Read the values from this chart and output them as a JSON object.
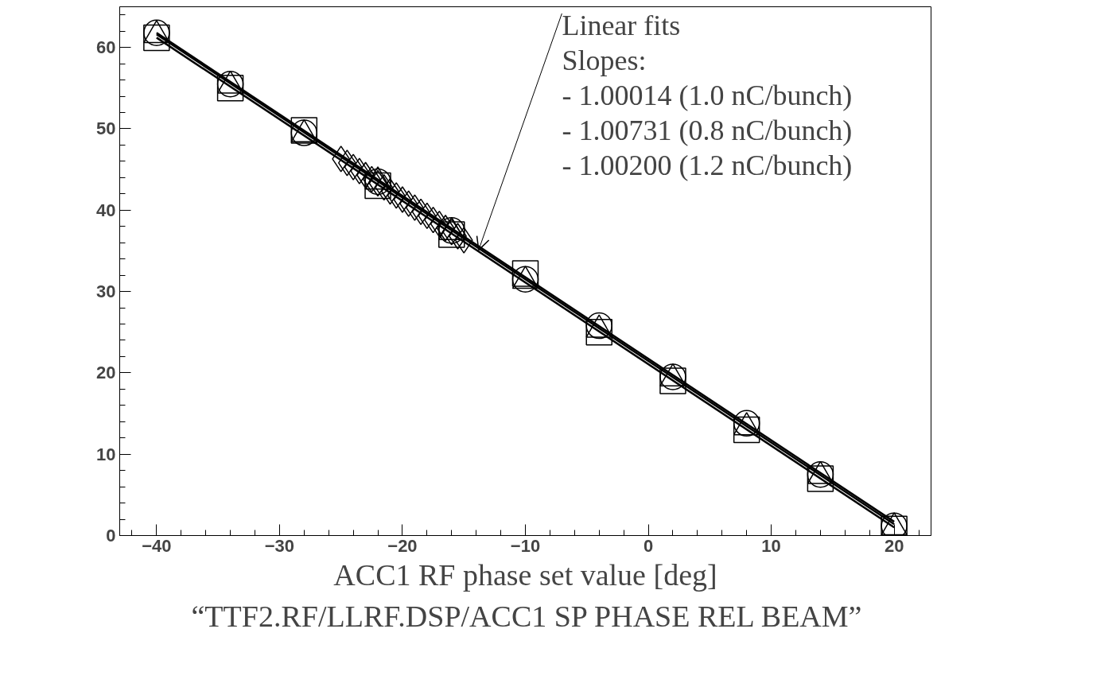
{
  "chart_data": {
    "type": "scatter",
    "xlabel": "ACC1 RF phase set value [deg]",
    "xlim": [
      -43,
      23
    ],
    "ylim": [
      0,
      65
    ],
    "xticks": [
      -40,
      -30,
      -20,
      -10,
      0,
      10,
      20
    ],
    "yticks": [
      0,
      10,
      20,
      30,
      40,
      50,
      60
    ],
    "grid": false,
    "series": [
      {
        "marker": "circle",
        "color": "#000000",
        "x": [
          -40,
          -34,
          -28,
          -22,
          -16,
          -10,
          -4,
          2,
          8,
          14,
          20
        ],
        "values": [
          61.8,
          55.5,
          49.5,
          43.5,
          37.5,
          31.5,
          25.8,
          19.5,
          13.8,
          7.5,
          1.2
        ]
      },
      {
        "marker": "square",
        "color": "#000000",
        "x": [
          -40,
          -34,
          -28,
          -22,
          -16,
          -10,
          -4,
          2,
          8,
          14,
          20
        ],
        "values": [
          61.2,
          55.0,
          49.8,
          43.0,
          37.0,
          32.2,
          25.0,
          19.0,
          13.0,
          7.0,
          0.8
        ]
      },
      {
        "marker": "triangle",
        "color": "#000000",
        "x": [
          -40,
          -34,
          -28,
          -22,
          -16,
          -10,
          -4,
          2,
          8,
          14,
          20
        ],
        "values": [
          61.5,
          55.3,
          49.3,
          43.5,
          37.3,
          31.3,
          25.3,
          19.3,
          13.3,
          7.3,
          1.0
        ]
      },
      {
        "marker": "diamond",
        "color": "#000000",
        "x": [
          -25,
          -24.5,
          -24,
          -23.5,
          -23,
          -22.5,
          -22,
          -21.5,
          -21,
          -20.5,
          -20,
          -19.5,
          -19,
          -18.5,
          -18,
          -17.5,
          -17,
          -16.5,
          -16,
          -15.5,
          -15
        ],
        "values": [
          46.3,
          45.8,
          45.3,
          44.8,
          44.3,
          43.8,
          43.3,
          42.8,
          42.3,
          41.8,
          41.3,
          40.8,
          40.3,
          39.8,
          39.3,
          38.8,
          38.3,
          37.8,
          37.3,
          36.8,
          36.3
        ]
      },
      {
        "type": "line",
        "color": "#000000",
        "x": [
          -40,
          20
        ],
        "values": [
          61.6,
          1.4
        ]
      },
      {
        "type": "line",
        "color": "#000000",
        "x": [
          -40,
          20
        ],
        "values": [
          61.2,
          1.0
        ]
      },
      {
        "type": "line",
        "color": "#000000",
        "x": [
          -40,
          20
        ],
        "values": [
          61.8,
          1.7
        ]
      }
    ],
    "annotations": [
      {
        "text": "Linear fits\nSlopes:\n- 1.00014 (1.0 nC/bunch)\n- 1.00731 (0.8 nC/bunch)\n- 1.00200 (1.2 nC/bunch)",
        "x": -13.8,
        "y": 35.1
      },
      "“TTF2.RF/LLRF.DSP/ACC1  SP  PHASE  REL  BEAM”"
    ]
  }
}
